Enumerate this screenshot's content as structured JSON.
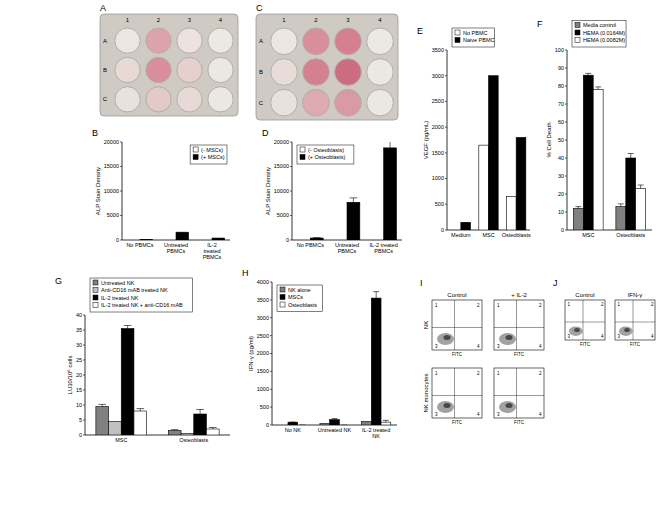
{
  "chart_data": [
    {
      "type": "bar",
      "title": "B",
      "ylabel": "ALP Stain Density",
      "categories": [
        "No PBMCs",
        "Untreated PBMCs",
        "IL-2 treated PBMCs"
      ],
      "series": [
        {
          "name": "(- MSCs)",
          "color": "#ffffff",
          "values": [
            0,
            0,
            0
          ]
        },
        {
          "name": "(+ MSCs)",
          "color": "#000000",
          "values": [
            100,
            1600,
            400
          ]
        }
      ],
      "ylim": [
        0,
        20000
      ],
      "yticks": [
        0,
        5000,
        10000,
        15000,
        20000
      ],
      "legend": "top-right"
    },
    {
      "type": "bar",
      "title": "D",
      "ylabel": "ALP Stain Density",
      "categories": [
        "No PBMCs",
        "Untreated PBMCs",
        "IL-2 treated PBMCs"
      ],
      "series": [
        {
          "name": "(- Osteoblasts)",
          "color": "#ffffff",
          "values": [
            0,
            0,
            0
          ]
        },
        {
          "name": "(+ Osteoblasts)",
          "color": "#000000",
          "values": [
            400,
            7700,
            18800
          ],
          "errors": [
            100,
            900,
            1500
          ]
        }
      ],
      "ylim": [
        0,
        20000
      ],
      "yticks": [
        0,
        5000,
        10000,
        15000,
        20000
      ],
      "legend": "top-left"
    },
    {
      "type": "bar",
      "title": "E",
      "ylabel": "VEGF (pg/mL)",
      "categories": [
        "Medium",
        "MSC",
        "Osteoblasts"
      ],
      "series": [
        {
          "name": "No PBMC",
          "color": "#ffffff",
          "values": [
            0,
            1650,
            650
          ]
        },
        {
          "name": "Naive PBMC",
          "color": "#000000",
          "values": [
            150,
            3000,
            1800
          ]
        }
      ],
      "ylim": [
        0,
        3500
      ],
      "yticks": [
        0,
        500,
        1000,
        1500,
        2000,
        2500,
        3000,
        3500
      ],
      "legend": "top"
    },
    {
      "type": "bar",
      "title": "F",
      "ylabel": "% Cell Death",
      "categories": [
        "MSC",
        "Osteoblasts"
      ],
      "series": [
        {
          "name": "Media control",
          "color": "#808080",
          "values": [
            12,
            13
          ],
          "errors": [
            1,
            1.5
          ]
        },
        {
          "name": "HEMA (0.0164M)",
          "color": "#000000",
          "values": [
            86,
            40
          ],
          "errors": [
            1,
            2.5
          ]
        },
        {
          "name": "HEMA (0.0082M)",
          "color": "#ffffff",
          "values": [
            78,
            23
          ],
          "errors": [
            1.5,
            2
          ]
        }
      ],
      "ylim": [
        0,
        100
      ],
      "yticks": [
        0,
        10,
        20,
        30,
        40,
        50,
        60,
        70,
        80,
        90,
        100
      ],
      "legend": "top"
    },
    {
      "type": "bar",
      "title": "G",
      "ylabel": "LU30/10⁶ cells",
      "categories": [
        "MSC",
        "Osteoblasts"
      ],
      "series": [
        {
          "name": "Untreated NK",
          "color": "#808080",
          "values": [
            9.5,
            1.5
          ],
          "errors": [
            0.7,
            0.3
          ]
        },
        {
          "name": "Anti-CD16 mAB treated NK",
          "color": "#c0c0c0",
          "values": [
            4.5,
            0.5
          ]
        },
        {
          "name": "IL-2 treated NK",
          "color": "#000000",
          "values": [
            35.5,
            7
          ],
          "errors": [
            1,
            1.5
          ]
        },
        {
          "name": "IL-2 treated NK + anti-CD16 mAB",
          "color": "#ffffff",
          "values": [
            8,
            2
          ],
          "errors": [
            0.8,
            0.5
          ]
        }
      ],
      "ylim": [
        0,
        40
      ],
      "yticks": [
        0,
        5,
        10,
        15,
        20,
        25,
        30,
        35,
        40
      ],
      "legend": "top"
    },
    {
      "type": "bar",
      "title": "H",
      "ylabel": "IFN-γ (pg/ml)",
      "categories": [
        "No NK",
        "Untreated NK",
        "IL-2 treated NK"
      ],
      "series": [
        {
          "name": "NK alone",
          "color": "#808080",
          "values": [
            0,
            40,
            100
          ]
        },
        {
          "name": "MSCs",
          "color": "#000000",
          "values": [
            80,
            150,
            3550
          ],
          "errors": [
            0,
            30,
            180
          ]
        },
        {
          "name": "Osteoblasts",
          "color": "#ffffff",
          "values": [
            0,
            0,
            80
          ],
          "errors": [
            0,
            0,
            50
          ]
        }
      ],
      "ylim": [
        0,
        4000
      ],
      "yticks": [
        0,
        500,
        1000,
        1500,
        2000,
        2500,
        3000,
        3500,
        4000
      ],
      "legend": "top-left"
    }
  ],
  "plates": [
    {
      "label": "A",
      "columns": [
        "1",
        "2",
        "3",
        "4"
      ],
      "rows": [
        "A",
        "B",
        "C"
      ],
      "wells": [
        [
          "#ece6e2",
          "#dda3ad",
          "#ede2df",
          "#ece8e4"
        ],
        [
          "#e6d9d6",
          "#d98e9b",
          "#e6cfcf",
          "#ebe7e3"
        ],
        [
          "#e8e2de",
          "#e3c9c8",
          "#e6d9d6",
          "#ebe7e3"
        ]
      ]
    },
    {
      "label": "C",
      "columns": [
        "1",
        "2",
        "3",
        "4"
      ],
      "rows": [
        "A",
        "B",
        "C"
      ],
      "wells": [
        [
          "#ece6e2",
          "#d98e9b",
          "#d4808f",
          "#ece8e4"
        ],
        [
          "#e8dcd8",
          "#d4808f",
          "#cc6c80",
          "#ebe7e3"
        ],
        [
          "#e8e2de",
          "#dcaab0",
          "#d89aa4",
          "#ebe7e3"
        ]
      ]
    }
  ],
  "flow_plots": [
    {
      "label": "I",
      "column_titles": [
        "Control",
        "+ IL-2"
      ],
      "row_titles": [
        "NK",
        "NK monocytes"
      ],
      "x_label": "FITC",
      "quadrants": [
        "1",
        "2",
        "3",
        "4"
      ]
    },
    {
      "label": "J",
      "column_titles": [
        "Control",
        "IFN-γ"
      ],
      "x_label": "FITC",
      "quadrants": [
        "1",
        "2",
        "3",
        "4"
      ]
    }
  ]
}
